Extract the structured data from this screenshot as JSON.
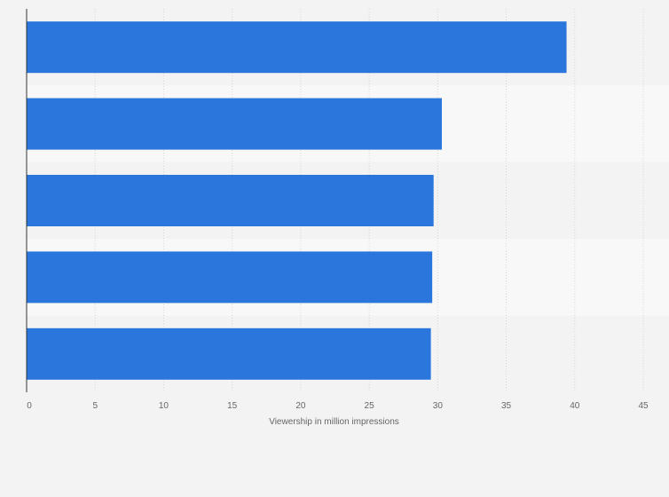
{
  "chart_data": {
    "type": "bar",
    "orientation": "horizontal",
    "categories": [
      "",
      "",
      "",
      "",
      ""
    ],
    "values": [
      39.4,
      30.3,
      29.7,
      29.6,
      29.5
    ],
    "title": "",
    "xlabel": "Viewership in million impressions",
    "ylabel": "",
    "xlim": [
      0,
      45
    ],
    "xticks": [
      "0",
      "5",
      "10",
      "15",
      "20",
      "25",
      "30",
      "35",
      "40",
      "45"
    ],
    "grid": true,
    "bar_color": "#2a76dd",
    "band_colors": [
      "#f3f3f3",
      "#f8f8f8"
    ]
  }
}
